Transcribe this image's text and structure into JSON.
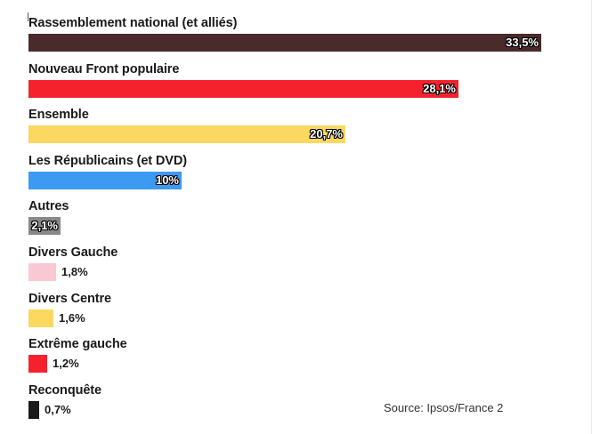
{
  "chart_data": {
    "type": "bar",
    "orientation": "horizontal",
    "categories": [
      "Rassemblement national (et alliés)",
      "Nouveau Front populaire",
      "Ensemble",
      "Les Républicains (et DVD)",
      "Autres",
      "Divers Gauche",
      "Divers Centre",
      "Extrême gauche",
      "Reconquête"
    ],
    "values": [
      33.5,
      28.1,
      20.7,
      10,
      2.1,
      1.8,
      1.6,
      1.2,
      0.7
    ],
    "value_labels": [
      "33,5%",
      "28,1%",
      "20,7%",
      "10%",
      "2,1%",
      "1,8%",
      "1,6%",
      "1,2%",
      "0,7%"
    ],
    "colors": [
      "#4a2a2a",
      "#f5222e",
      "#fcd860",
      "#3d9af2",
      "#888888",
      "#fac8d2",
      "#fcd860",
      "#f5222e",
      "#1a1a1a"
    ],
    "label_inside": [
      true,
      true,
      true,
      true,
      true,
      false,
      false,
      false,
      false
    ],
    "xlim": [
      0,
      33.5
    ],
    "grid": false,
    "source": "Source: Ipsos/France 2"
  }
}
